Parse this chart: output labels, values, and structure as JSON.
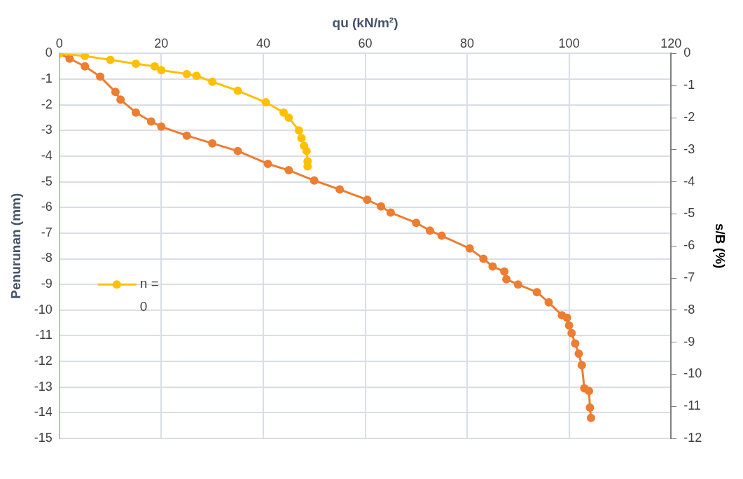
{
  "chart_data": {
    "type": "line",
    "xlabel": "qu (kN/m²)",
    "ylabel": "Penurunan (mm)",
    "y2label": "s/B (%)",
    "xlim": [
      0,
      120
    ],
    "xticks": [
      0,
      20,
      40,
      60,
      80,
      100,
      120
    ],
    "ylim": [
      -15,
      0
    ],
    "yticks": [
      0,
      -1,
      -2,
      -3,
      -4,
      -5,
      -6,
      -7,
      -8,
      -9,
      -10,
      -11,
      -12,
      -13,
      -14,
      -15
    ],
    "y2lim": [
      -12,
      0
    ],
    "y2ticks": [
      0,
      -1,
      -2,
      -3,
      -4,
      -5,
      -6,
      -7,
      -8,
      -9,
      -10,
      -11,
      -12
    ],
    "grid": true,
    "legend": "left",
    "marker": "circle",
    "line_style": "solid",
    "series": [
      {
        "name": "n = 0",
        "color": "#ffc000",
        "x": [
          0,
          5,
          10,
          15,
          18.7,
          20,
          25,
          26.9,
          30,
          35,
          40.5,
          44,
          45,
          47,
          47.5,
          48,
          48.5,
          48.7,
          48.7
        ],
        "values": [
          0,
          -0.1,
          -0.25,
          -0.4,
          -0.5,
          -0.65,
          -0.8,
          -0.87,
          -1.1,
          -1.45,
          -1.9,
          -2.3,
          -2.5,
          -3.0,
          -3.3,
          -3.6,
          -3.8,
          -4.2,
          -4.4
        ]
      },
      {
        "color": "#ed7d31",
        "x": [
          0,
          2,
          5,
          8,
          11,
          12,
          15,
          18,
          20,
          25,
          30,
          35,
          40.9,
          45,
          50,
          55,
          60.4,
          63.1,
          65,
          70,
          72.7,
          75,
          80.5,
          83.2,
          85,
          87.3,
          87.7,
          90,
          93.7,
          96,
          98.6,
          99.6,
          100,
          100.5,
          101.2,
          101.9,
          102.5,
          103,
          103.9,
          104.1,
          104.3
        ],
        "values": [
          0,
          -0.2,
          -0.5,
          -0.9,
          -1.5,
          -1.8,
          -2.3,
          -2.65,
          -2.85,
          -3.2,
          -3.5,
          -3.8,
          -4.3,
          -4.55,
          -4.95,
          -5.3,
          -5.7,
          -5.96,
          -6.2,
          -6.6,
          -6.9,
          -7.1,
          -7.6,
          -8.0,
          -8.3,
          -8.5,
          -8.8,
          -9.0,
          -9.3,
          -9.7,
          -10.2,
          -10.3,
          -10.6,
          -10.9,
          -11.3,
          -11.7,
          -12.15,
          -13.05,
          -13.15,
          -13.8,
          -14.2
        ]
      }
    ]
  }
}
